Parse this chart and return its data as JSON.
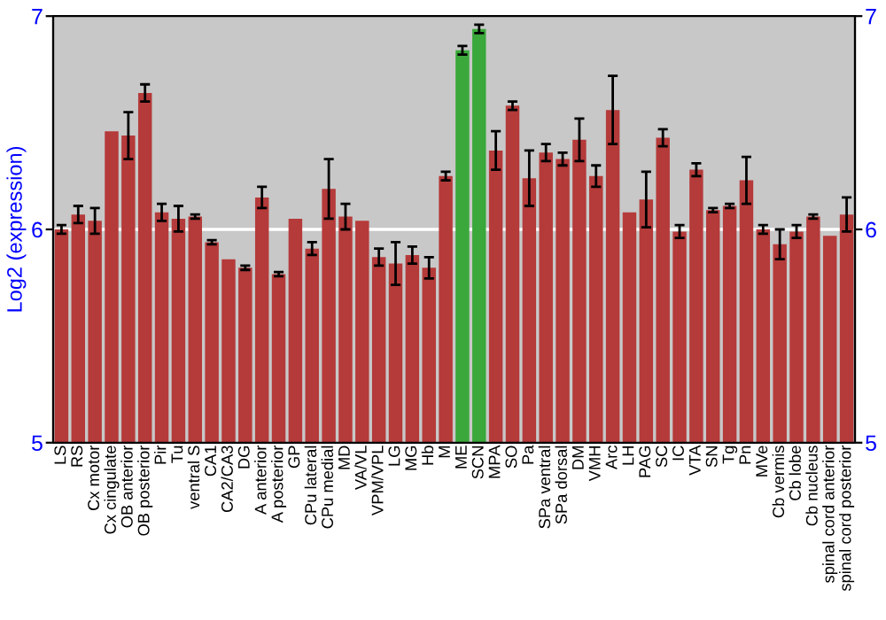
{
  "chart_data": {
    "type": "bar",
    "ylabel": "Log2 (expression)",
    "categories": [
      "LS",
      "RS",
      "Cx motor",
      "Cx cingulate",
      "OB anterior",
      "OB posterior",
      "Pir",
      "Tu",
      "ventral S",
      "CA1",
      "CA2/CA3",
      "DG",
      "A anterior",
      "A posterior",
      "GP",
      "CPu lateral",
      "CPu medial",
      "MD",
      "VA/VL",
      "VPM/VPL",
      "LG",
      "MG",
      "Hb",
      "M",
      "ME",
      "SCN",
      "MPA",
      "SO",
      "Pa",
      "SPa ventral",
      "SPa dorsal",
      "DM",
      "VMH",
      "Arc",
      "LH",
      "PAG",
      "SC",
      "IC",
      "VTA",
      "SN",
      "Tg",
      "Pn",
      "MVe",
      "Cb vermis",
      "Cb lobe",
      "Cb nucleus",
      "spinal cord anterior",
      "spinal cord posterior"
    ],
    "values": [
      6.0,
      6.07,
      6.04,
      6.46,
      6.44,
      6.64,
      6.08,
      6.05,
      6.06,
      5.94,
      5.86,
      5.82,
      6.15,
      5.79,
      6.05,
      5.91,
      6.19,
      6.06,
      6.04,
      5.87,
      5.84,
      5.88,
      5.82,
      6.25,
      6.84,
      6.94,
      6.37,
      6.58,
      6.24,
      6.36,
      6.33,
      6.42,
      6.25,
      6.56,
      6.08,
      6.14,
      6.43,
      5.99,
      6.28,
      6.09,
      6.11,
      6.23,
      6.0,
      5.93,
      5.99,
      6.06,
      5.97,
      6.07
    ],
    "errors": [
      0.02,
      0.04,
      0.06,
      null,
      0.11,
      0.04,
      0.04,
      0.06,
      0.01,
      0.01,
      null,
      0.01,
      0.05,
      0.01,
      null,
      0.03,
      0.14,
      0.06,
      null,
      0.04,
      0.1,
      0.04,
      0.05,
      0.02,
      0.02,
      0.02,
      0.09,
      0.02,
      0.13,
      0.04,
      0.03,
      0.1,
      0.05,
      0.16,
      null,
      0.13,
      0.04,
      0.03,
      0.03,
      0.01,
      0.01,
      0.11,
      0.02,
      0.07,
      0.03,
      0.01,
      null,
      0.08
    ],
    "colors": [
      "#b53a3a",
      "#b53a3a",
      "#b53a3a",
      "#b53a3a",
      "#b53a3a",
      "#b53a3a",
      "#b53a3a",
      "#b53a3a",
      "#b53a3a",
      "#b53a3a",
      "#b53a3a",
      "#b53a3a",
      "#b53a3a",
      "#b53a3a",
      "#b53a3a",
      "#b53a3a",
      "#b53a3a",
      "#b53a3a",
      "#b53a3a",
      "#b53a3a",
      "#b53a3a",
      "#b53a3a",
      "#b53a3a",
      "#b53a3a",
      "#3aa83a",
      "#3aa83a",
      "#b53a3a",
      "#b53a3a",
      "#b53a3a",
      "#b53a3a",
      "#b53a3a",
      "#b53a3a",
      "#b53a3a",
      "#b53a3a",
      "#b53a3a",
      "#b53a3a",
      "#b53a3a",
      "#b53a3a",
      "#b53a3a",
      "#b53a3a",
      "#b53a3a",
      "#b53a3a",
      "#b53a3a",
      "#b53a3a",
      "#b53a3a",
      "#b53a3a",
      "#b53a3a",
      "#b53a3a"
    ],
    "ylim": [
      5,
      7
    ],
    "yticks": [
      5,
      6,
      7
    ],
    "y2lim": [
      5,
      7
    ],
    "y2ticks": [
      5,
      6,
      7
    ],
    "grid": "y"
  }
}
